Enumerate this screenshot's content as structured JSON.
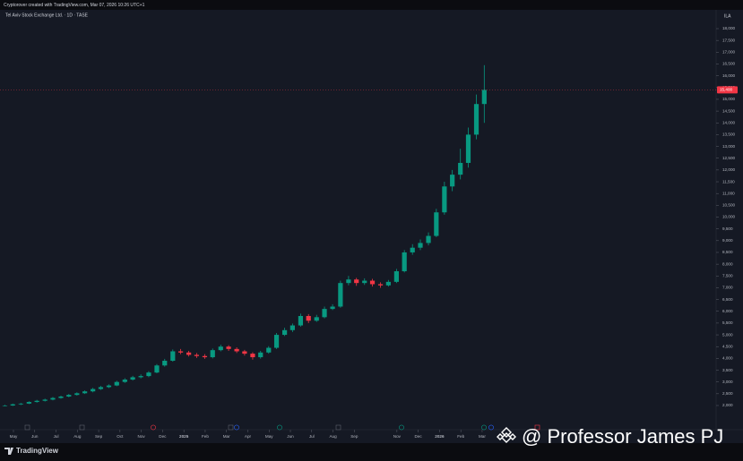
{
  "caption": "Cryptorover created with TradingView.com, Mar 07, 2026 10:26 UTC+1",
  "watermark": "@ Professor James PJ",
  "brand": "TradingView",
  "chart_data": {
    "type": "candlestick",
    "title": "Tel Aviv Stock Exchange Ltd. · 1D · TASE",
    "currency": "ILA",
    "grid": false,
    "up_color": "#089981",
    "down_color": "#f23645",
    "last_price": {
      "value": 15400,
      "label": "15,400"
    },
    "xlim": [
      -0.46,
      33.2
    ],
    "ylim": [
      2000,
      18000
    ],
    "xticks": [
      {
        "value": 0,
        "label": "May"
      },
      {
        "value": 1,
        "label": "Jun"
      },
      {
        "value": 2,
        "label": "Jul"
      },
      {
        "value": 3,
        "label": "Aug"
      },
      {
        "value": 4,
        "label": "Sep"
      },
      {
        "value": 5,
        "label": "Oct"
      },
      {
        "value": 6,
        "label": "Nov"
      },
      {
        "value": 7,
        "label": "Dec"
      },
      {
        "value": 8,
        "label": "2025"
      },
      {
        "value": 9,
        "label": "Feb"
      },
      {
        "value": 10,
        "label": "Mar"
      },
      {
        "value": 11,
        "label": "Apr"
      },
      {
        "value": 12,
        "label": "May"
      },
      {
        "value": 13,
        "label": "Jun"
      },
      {
        "value": 14,
        "label": "Jul"
      },
      {
        "value": 15,
        "label": "Aug"
      },
      {
        "value": 16,
        "label": "Sep"
      },
      {
        "value": 18,
        "label": "Nov"
      },
      {
        "value": 19,
        "label": "Dec"
      },
      {
        "value": 20,
        "label": "2026"
      },
      {
        "value": 21,
        "label": "Feb"
      },
      {
        "value": 22,
        "label": "Mar"
      }
    ],
    "yticks": [
      {
        "value": 2000,
        "label": "2,000"
      },
      {
        "value": 2500,
        "label": "2,500"
      },
      {
        "value": 3000,
        "label": "3,000"
      },
      {
        "value": 3500,
        "label": "3,500"
      },
      {
        "value": 4000,
        "label": "4,000"
      },
      {
        "value": 4500,
        "label": "4,500"
      },
      {
        "value": 5000,
        "label": "5,000"
      },
      {
        "value": 5500,
        "label": "5,500"
      },
      {
        "value": 6000,
        "label": "6,000"
      },
      {
        "value": 6500,
        "label": "6,500"
      },
      {
        "value": 7000,
        "label": "7,000"
      },
      {
        "value": 7500,
        "label": "7,500"
      },
      {
        "value": 8000,
        "label": "8,000"
      },
      {
        "value": 8500,
        "label": "8,500"
      },
      {
        "value": 9000,
        "label": "9,000"
      },
      {
        "value": 9500,
        "label": "9,500"
      },
      {
        "value": 10000,
        "label": "10,000"
      },
      {
        "value": 10500,
        "label": "10,500"
      },
      {
        "value": 11000,
        "label": "11,000"
      },
      {
        "value": 11500,
        "label": "11,500"
      },
      {
        "value": 12000,
        "label": "12,000"
      },
      {
        "value": 12500,
        "label": "12,500"
      },
      {
        "value": 13000,
        "label": "13,000"
      },
      {
        "value": 13500,
        "label": "13,500"
      },
      {
        "value": 14000,
        "label": "14,000"
      },
      {
        "value": 14500,
        "label": "14,500"
      },
      {
        "value": 15000,
        "label": "15,000"
      },
      {
        "value": 15500,
        "label": "15,500"
      },
      {
        "value": 16000,
        "label": "16,000"
      },
      {
        "value": 16500,
        "label": "16,500"
      },
      {
        "value": 17000,
        "label": "17,000"
      },
      {
        "value": 17500,
        "label": "17,500"
      },
      {
        "value": 18000,
        "label": "18,000"
      }
    ],
    "series": [
      {
        "x": [
          -0.4,
          -0.03,
          0.35,
          0.73,
          1.1,
          1.48,
          1.85,
          2.23,
          2.6,
          2.98,
          3.35,
          3.73,
          4.1,
          4.48,
          4.85,
          5.23,
          5.6,
          5.98,
          6.35,
          6.73,
          7.1,
          7.48,
          7.85,
          8.23,
          8.6,
          8.98,
          9.35,
          9.73,
          10.1,
          10.48,
          10.85,
          11.23,
          11.6,
          11.98,
          12.35,
          12.73,
          13.1,
          13.48,
          13.85,
          14.23,
          14.6,
          14.98,
          15.35,
          15.73,
          16.1,
          16.48,
          16.85,
          17.23,
          17.6,
          17.98,
          18.35,
          18.73,
          19.1,
          19.48,
          19.85,
          20.23,
          20.6,
          20.98,
          21.35,
          21.73,
          22.1
        ],
        "open": [
          1980,
          2000,
          2050,
          2080,
          2150,
          2200,
          2250,
          2320,
          2380,
          2450,
          2520,
          2600,
          2700,
          2780,
          2850,
          3000,
          3100,
          3200,
          3250,
          3400,
          3700,
          3900,
          4300,
          4250,
          4150,
          4100,
          4050,
          4350,
          4500,
          4400,
          4300,
          4200,
          4050,
          4250,
          4450,
          5000,
          5200,
          5400,
          5800,
          5600,
          5750,
          6100,
          6200,
          7200,
          7350,
          7200,
          7300,
          7150,
          7100,
          7250,
          7700,
          8500,
          8700,
          8900,
          9200,
          10200,
          11300,
          11800,
          12300,
          13500,
          14800
        ],
        "high": [
          2030,
          2080,
          2110,
          2180,
          2240,
          2290,
          2360,
          2420,
          2490,
          2560,
          2640,
          2750,
          2830,
          2900,
          3050,
          3160,
          3260,
          3320,
          3460,
          3760,
          3980,
          4380,
          4400,
          4320,
          4230,
          4180,
          4420,
          4580,
          4560,
          4470,
          4360,
          4260,
          4320,
          4520,
          5080,
          5300,
          5480,
          5900,
          5880,
          5850,
          6200,
          6300,
          7300,
          7500,
          7420,
          7400,
          7380,
          7230,
          7330,
          7800,
          8600,
          8850,
          9050,
          9350,
          10350,
          11500,
          12000,
          12900,
          13800,
          15200,
          16450
        ],
        "low": [
          1960,
          1980,
          2020,
          2060,
          2120,
          2170,
          2220,
          2290,
          2350,
          2420,
          2490,
          2560,
          2660,
          2740,
          2820,
          2960,
          3060,
          3150,
          3200,
          3370,
          3650,
          3860,
          4180,
          4080,
          4020,
          3980,
          4000,
          4300,
          4320,
          4230,
          4120,
          3950,
          3990,
          4200,
          4400,
          4950,
          5120,
          5350,
          5500,
          5550,
          5700,
          6050,
          6150,
          7100,
          7080,
          7120,
          7050,
          7000,
          7050,
          7200,
          7650,
          8400,
          8600,
          8800,
          9150,
          10100,
          11100,
          11600,
          12100,
          13300,
          14000
        ],
        "close": [
          2000,
          2050,
          2080,
          2150,
          2200,
          2250,
          2320,
          2380,
          2450,
          2520,
          2600,
          2700,
          2780,
          2850,
          3000,
          3100,
          3200,
          3250,
          3400,
          3700,
          3900,
          4300,
          4250,
          4150,
          4100,
          4050,
          4350,
          4500,
          4400,
          4300,
          4200,
          4050,
          4250,
          4450,
          5000,
          5200,
          5400,
          5800,
          5600,
          5750,
          6100,
          6200,
          7200,
          7350,
          7200,
          7300,
          7150,
          7100,
          7250,
          7700,
          8500,
          8700,
          8900,
          9200,
          10200,
          11300,
          11800,
          12300,
          13500,
          14800,
          15400
        ]
      }
    ]
  }
}
